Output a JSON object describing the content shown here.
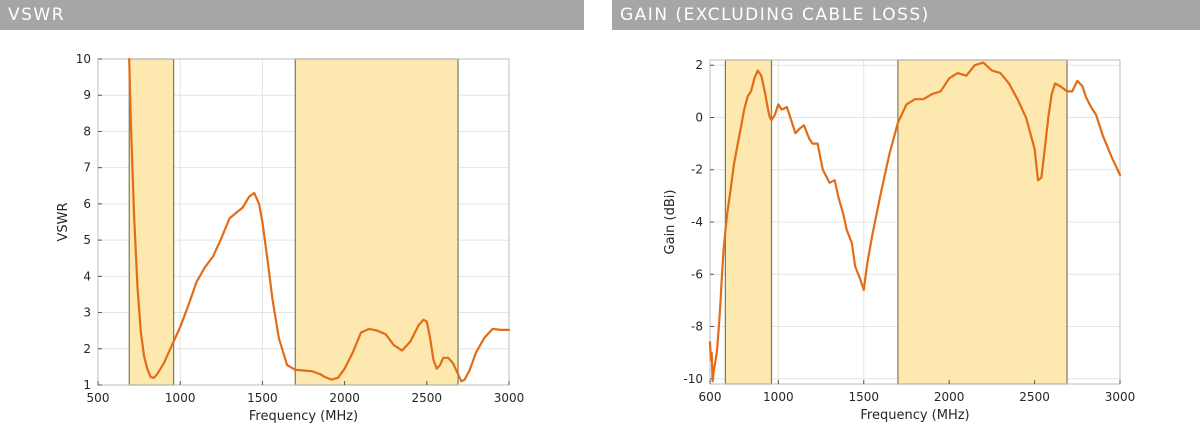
{
  "colors": {
    "header_bg": "#a6a6a6",
    "band_fill": "#fde8b0",
    "band_stroke": "#7a7a60",
    "line": "#e36c17",
    "grid": "#e4e4e4"
  },
  "chart_data": [
    {
      "type": "line",
      "title": "VSWR",
      "xlabel": "Frequency (MHz)",
      "ylabel": "VSWR",
      "xlim": [
        500,
        3000
      ],
      "ylim": [
        1,
        10
      ],
      "xticks": [
        500,
        1000,
        1500,
        2000,
        2500,
        3000
      ],
      "yticks": [
        1,
        2,
        3,
        4,
        5,
        6,
        7,
        8,
        9,
        10
      ],
      "grid": true,
      "bands": [
        [
          690,
          960
        ],
        [
          1700,
          2690
        ]
      ],
      "series": [
        {
          "x": [
            690,
            700,
            720,
            740,
            760,
            780,
            800,
            820,
            840,
            860,
            880,
            900,
            950,
            1000,
            1050,
            1100,
            1150,
            1200,
            1250,
            1300,
            1340,
            1380,
            1420,
            1450,
            1480,
            1500,
            1530,
            1560,
            1600,
            1650,
            1700,
            1750,
            1800,
            1850,
            1880,
            1920,
            1960,
            2000,
            2050,
            2100,
            2150,
            2200,
            2250,
            2300,
            2350,
            2400,
            2450,
            2480,
            2500,
            2520,
            2540,
            2560,
            2580,
            2600,
            2630,
            2660,
            2690,
            2710,
            2730,
            2760,
            2800,
            2850,
            2900,
            2950,
            3000
          ],
          "y": [
            10,
            8.2,
            5.6,
            3.7,
            2.5,
            1.8,
            1.45,
            1.22,
            1.2,
            1.3,
            1.45,
            1.6,
            2.1,
            2.6,
            3.2,
            3.85,
            4.25,
            4.55,
            5.05,
            5.6,
            5.75,
            5.9,
            6.2,
            6.3,
            6.0,
            5.5,
            4.5,
            3.4,
            2.3,
            1.55,
            1.42,
            1.4,
            1.38,
            1.3,
            1.22,
            1.15,
            1.2,
            1.45,
            1.9,
            2.45,
            2.55,
            2.5,
            2.4,
            2.1,
            1.95,
            2.2,
            2.65,
            2.8,
            2.75,
            2.3,
            1.7,
            1.45,
            1.55,
            1.75,
            1.75,
            1.6,
            1.3,
            1.1,
            1.15,
            1.4,
            1.9,
            2.3,
            2.55,
            2.52,
            2.52
          ]
        }
      ]
    },
    {
      "type": "line",
      "title": "GAIN (EXCLUDING CABLE LOSS)",
      "xlabel": "Frequency (MHz)",
      "ylabel": "Gain (dBi)",
      "xlim": [
        600,
        3000
      ],
      "ylim": [
        -10.2,
        2.2
      ],
      "xticks": [
        600,
        1000,
        1500,
        2000,
        2500,
        3000
      ],
      "yticks": [
        -10,
        -8,
        -6,
        -4,
        -2,
        0,
        2
      ],
      "grid": true,
      "bands": [
        [
          690,
          960
        ],
        [
          1700,
          2690
        ]
      ],
      "series": [
        {
          "x": [
            600,
            605,
            610,
            615,
            620,
            630,
            640,
            650,
            660,
            670,
            680,
            700,
            720,
            740,
            760,
            780,
            800,
            820,
            840,
            860,
            880,
            900,
            920,
            940,
            950,
            960,
            980,
            1000,
            1020,
            1050,
            1080,
            1100,
            1130,
            1150,
            1180,
            1200,
            1230,
            1260,
            1300,
            1330,
            1350,
            1380,
            1400,
            1430,
            1450,
            1480,
            1500,
            1520,
            1550,
            1600,
            1650,
            1700,
            1750,
            1800,
            1850,
            1900,
            1950,
            2000,
            2050,
            2100,
            2150,
            2200,
            2250,
            2300,
            2350,
            2400,
            2450,
            2500,
            2520,
            2540,
            2560,
            2580,
            2600,
            2620,
            2650,
            2690,
            2720,
            2750,
            2780,
            2800,
            2830,
            2860,
            2900,
            2950,
            3000
          ],
          "y": [
            -8.6,
            -9.3,
            -9.0,
            -10.1,
            -9.8,
            -9.4,
            -9.0,
            -8.2,
            -7.2,
            -6.0,
            -5.0,
            -3.7,
            -2.8,
            -1.8,
            -1.1,
            -0.4,
            0.3,
            0.8,
            1.0,
            1.5,
            1.8,
            1.6,
            1.0,
            0.3,
            0.0,
            -0.1,
            0.1,
            0.5,
            0.3,
            0.4,
            -0.2,
            -0.6,
            -0.4,
            -0.3,
            -0.8,
            -1.0,
            -1.0,
            -2.0,
            -2.5,
            -2.4,
            -3.0,
            -3.7,
            -4.3,
            -4.8,
            -5.7,
            -6.2,
            -6.6,
            -5.6,
            -4.5,
            -2.9,
            -1.4,
            -0.2,
            0.5,
            0.7,
            0.7,
            0.9,
            1.0,
            1.5,
            1.7,
            1.6,
            2.0,
            2.1,
            1.8,
            1.7,
            1.3,
            0.7,
            0.0,
            -1.2,
            -2.4,
            -2.3,
            -1.2,
            0.0,
            0.9,
            1.3,
            1.2,
            1.0,
            1.0,
            1.4,
            1.2,
            0.8,
            0.4,
            0.1,
            -0.7,
            -1.5,
            -2.2
          ]
        }
      ]
    }
  ]
}
